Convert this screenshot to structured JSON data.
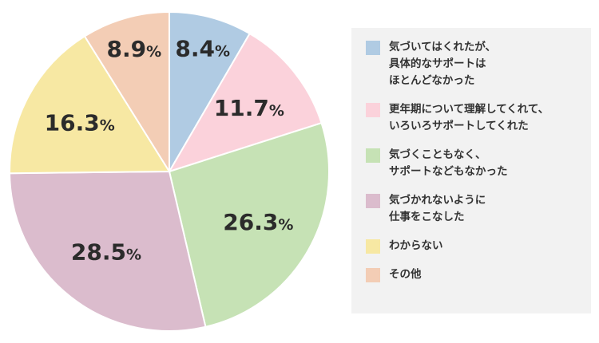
{
  "chart_data": {
    "type": "pie",
    "unit": "%",
    "slices": [
      {
        "label": "気づいてはくれたが、\n具体的なサポートは\nほとんどなかった",
        "value": 8.4,
        "display": "8.4",
        "color": "#b0cbe3"
      },
      {
        "label": "更年期について理解してくれて、\nいろいろサポートしてくれた",
        "value": 11.7,
        "display": "11.7",
        "color": "#fbd2db"
      },
      {
        "label": "気づくこともなく、\nサポートなどもなかった",
        "value": 26.3,
        "display": "26.3",
        "color": "#c6e2b5"
      },
      {
        "label": "気づかれないように\n仕事をこなした",
        "value": 28.5,
        "display": "28.5",
        "color": "#dbbccd"
      },
      {
        "label": "わからない",
        "value": 16.3,
        "display": "16.3",
        "color": "#f7e8a3"
      },
      {
        "label": "その他",
        "value": 8.9,
        "display": "8.9",
        "color": "#f3cdb5"
      }
    ],
    "legend_position": "right"
  }
}
